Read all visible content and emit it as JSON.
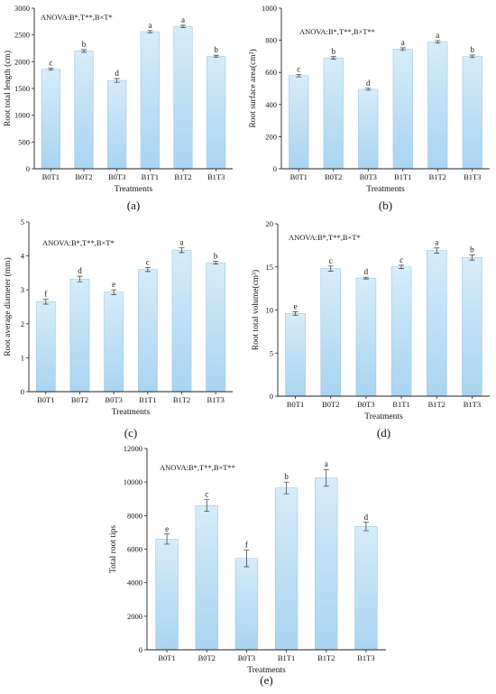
{
  "bar_fill_top": "#d6ecf9",
  "bar_fill_bottom": "#a9d4f1",
  "bar_stroke": "#9fc7e2",
  "axis_color": "#222222",
  "chart_data": [
    {
      "type": "bar",
      "panel_label": "(a)",
      "annotation": "ANOVA:B*,T**,B×T*",
      "categories": [
        "B0T1",
        "B0T2",
        "B0T3",
        "B1T1",
        "B1T2",
        "B1T3"
      ],
      "values": [
        1860,
        2200,
        1650,
        2560,
        2660,
        2100
      ],
      "errors": [
        20,
        25,
        35,
        20,
        20,
        20
      ],
      "letters": [
        "c",
        "b",
        "d",
        "a",
        "a",
        "b"
      ],
      "xlabel": "Treatments",
      "ylabel": "Root total length (cm)",
      "ylim": [
        0,
        3000
      ],
      "yticks": [
        0,
        500,
        1000,
        1500,
        2000,
        2500,
        3000
      ]
    },
    {
      "type": "bar",
      "panel_label": "(b)",
      "annotation": "ANOVA:B*,T**,B×T**",
      "categories": [
        "B0T1",
        "B0T2",
        "B0T3",
        "B1T1",
        "B1T2",
        "B1T3"
      ],
      "values": [
        580,
        690,
        495,
        745,
        790,
        700
      ],
      "errors": [
        8,
        8,
        6,
        8,
        8,
        8
      ],
      "letters": [
        "c",
        "b",
        "d",
        "a",
        "a",
        "b"
      ],
      "xlabel": "Treatments",
      "ylabel": "Root surface area(cm²)",
      "ylim": [
        0,
        1000
      ],
      "yticks": [
        0,
        200,
        400,
        600,
        800,
        1000
      ]
    },
    {
      "type": "bar",
      "panel_label": "(c)",
      "annotation": "ANOVA:B*,T**,B×T*",
      "categories": [
        "B0T1",
        "B0T2",
        "B0T3",
        "B1T1",
        "B1T2",
        "B1T3"
      ],
      "values": [
        2.65,
        3.32,
        2.93,
        3.6,
        4.17,
        3.8
      ],
      "errors": [
        0.07,
        0.08,
        0.07,
        0.06,
        0.07,
        0.04
      ],
      "letters": [
        "f",
        "d",
        "e",
        "c",
        "a",
        "b"
      ],
      "xlabel": "Treatments",
      "ylabel": "Root average diameter (mm)",
      "ylim": [
        0,
        5
      ],
      "yticks": [
        0,
        1,
        2,
        3,
        4,
        5
      ]
    },
    {
      "type": "bar",
      "panel_label": "(d)",
      "annotation": "ANOVA:B*,T**,B×T*",
      "categories": [
        "B0T1",
        "B0T2",
        "B0T3",
        "B1T1",
        "B1T2",
        "B1T3"
      ],
      "values": [
        9.6,
        14.8,
        13.7,
        15.0,
        16.9,
        16.1
      ],
      "errors": [
        0.2,
        0.3,
        0.1,
        0.2,
        0.3,
        0.3
      ],
      "letters": [
        "e",
        "c",
        "d",
        "c",
        "a",
        "b"
      ],
      "xlabel": "Treatments",
      "ylabel": "Root total volume(cm³)",
      "ylim": [
        0,
        20
      ],
      "yticks": [
        0,
        5,
        10,
        15,
        20
      ]
    },
    {
      "type": "bar",
      "panel_label": "(e)",
      "annotation": "ANOVA:B*,T**,B×T**",
      "categories": [
        "B0T1",
        "B0T2",
        "B0T3",
        "B1T1",
        "B1T2",
        "B1T3"
      ],
      "values": [
        6600,
        8600,
        5450,
        9650,
        10250,
        7350
      ],
      "errors": [
        300,
        350,
        500,
        350,
        500,
        250
      ],
      "letters": [
        "e",
        "c",
        "f",
        "b",
        "a",
        "d"
      ],
      "xlabel": "Treatments",
      "ylabel": "Total root tips",
      "ylim": [
        0,
        12000
      ],
      "yticks": [
        0,
        2000,
        4000,
        6000,
        8000,
        10000,
        12000
      ]
    }
  ]
}
